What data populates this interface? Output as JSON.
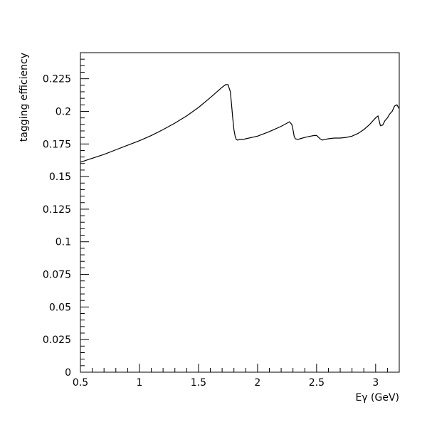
{
  "chart_data": {
    "type": "line",
    "title": "",
    "xlabel": "Eγ (GeV)",
    "ylabel": "tagging efficiency",
    "xlim": [
      0.5,
      3.2
    ],
    "ylim": [
      0,
      0.245
    ],
    "xticks": [
      0.5,
      1,
      1.5,
      2,
      2.5,
      3
    ],
    "xtick_labels": [
      "0.5",
      "1",
      "1.5",
      "2",
      "2.5",
      "3"
    ],
    "yticks": [
      0,
      0.025,
      0.05,
      0.075,
      0.1,
      0.125,
      0.15,
      0.175,
      0.2,
      0.225
    ],
    "ytick_labels": [
      "0",
      "0.025",
      "0.05",
      "0.075",
      "0.1",
      "0.125",
      "0.15",
      "0.175",
      "0.2",
      "0.225"
    ],
    "grid": false,
    "legend": "none",
    "series": [
      {
        "x": [
          0.5,
          0.6,
          0.7,
          0.8,
          0.9,
          1.0,
          1.1,
          1.2,
          1.3,
          1.4,
          1.5,
          1.6,
          1.65,
          1.7,
          1.73,
          1.75,
          1.77,
          1.78,
          1.79,
          1.8,
          1.81,
          1.82,
          1.83,
          1.85,
          1.88,
          1.9,
          2.0,
          2.1,
          2.2,
          2.25,
          2.27,
          2.29,
          2.3,
          2.31,
          2.32,
          2.34,
          2.36,
          2.4,
          2.45,
          2.48,
          2.5,
          2.53,
          2.55,
          2.57,
          2.6,
          2.65,
          2.7,
          2.75,
          2.8,
          2.85,
          2.9,
          2.95,
          3.0,
          3.02,
          3.04,
          3.06,
          3.08,
          3.1,
          3.12,
          3.14,
          3.16,
          3.18,
          3.2
        ],
        "y": [
          0.161,
          0.164,
          0.167,
          0.1705,
          0.174,
          0.1775,
          0.1815,
          0.186,
          0.191,
          0.1965,
          0.203,
          0.2105,
          0.2145,
          0.2185,
          0.2205,
          0.2205,
          0.215,
          0.205,
          0.195,
          0.186,
          0.181,
          0.1785,
          0.178,
          0.1785,
          0.1785,
          0.179,
          0.181,
          0.1845,
          0.1885,
          0.191,
          0.192,
          0.19,
          0.186,
          0.181,
          0.179,
          0.1785,
          0.179,
          0.18,
          0.181,
          0.1815,
          0.1815,
          0.179,
          0.178,
          0.1785,
          0.179,
          0.1795,
          0.1795,
          0.18,
          0.181,
          0.183,
          0.186,
          0.19,
          0.195,
          0.1965,
          0.189,
          0.1895,
          0.193,
          0.195,
          0.198,
          0.2,
          0.204,
          0.205,
          0.202
        ]
      }
    ]
  }
}
